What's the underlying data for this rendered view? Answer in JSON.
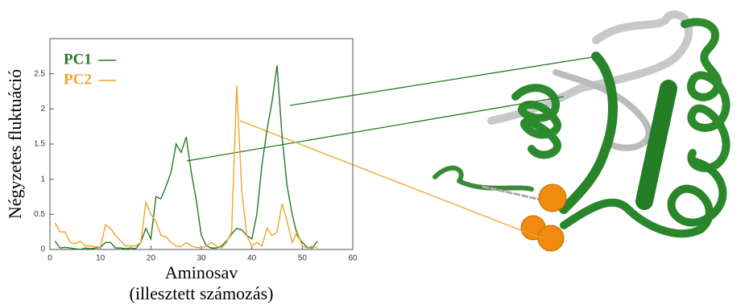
{
  "chart_data": {
    "type": "line",
    "y_label": "Négyzetes fluktuáció",
    "x_label": "Aminosav",
    "x_label_sub": "(illesztett számozás)",
    "x": [
      1,
      2,
      3,
      4,
      5,
      6,
      7,
      8,
      9,
      10,
      11,
      12,
      13,
      14,
      15,
      16,
      17,
      18,
      19,
      20,
      21,
      22,
      23,
      24,
      25,
      26,
      27,
      28,
      29,
      30,
      31,
      32,
      33,
      34,
      35,
      36,
      37,
      38,
      39,
      40,
      41,
      42,
      43,
      44,
      45,
      46,
      47,
      48,
      49,
      50,
      51,
      52,
      53
    ],
    "series": [
      {
        "name": "PC1",
        "color": "#237a23",
        "values": [
          0.12,
          0.02,
          0.03,
          0.02,
          0.01,
          0.0,
          0.02,
          0.01,
          0.02,
          0.03,
          0.1,
          0.1,
          0.02,
          0.02,
          0.01,
          0.02,
          0.01,
          0.1,
          0.3,
          0.15,
          0.75,
          0.72,
          0.9,
          1.1,
          1.5,
          1.38,
          1.6,
          1.1,
          0.7,
          0.2,
          0.05,
          0.02,
          0.02,
          0.05,
          0.12,
          0.22,
          0.3,
          0.28,
          0.2,
          0.15,
          0.5,
          1.2,
          1.7,
          2.1,
          2.62,
          1.6,
          0.9,
          0.5,
          0.2,
          0.1,
          0.03,
          0.02,
          0.12
        ]
      },
      {
        "name": "PC2",
        "color": "#f0a525",
        "values": [
          0.38,
          0.25,
          0.25,
          0.1,
          0.08,
          0.12,
          0.05,
          0.05,
          0.04,
          0.03,
          0.35,
          0.3,
          0.2,
          0.12,
          0.05,
          0.05,
          0.05,
          0.1,
          0.67,
          0.5,
          0.4,
          0.2,
          0.18,
          0.1,
          0.05,
          0.04,
          0.1,
          0.05,
          0.03,
          0.02,
          0.05,
          0.1,
          0.05,
          0.02,
          0.1,
          0.25,
          2.33,
          0.85,
          0.2,
          0.05,
          0.1,
          0.05,
          0.3,
          0.2,
          0.25,
          0.65,
          0.4,
          0.1,
          0.25,
          0.05,
          0.02,
          0.05,
          0.02
        ]
      }
    ],
    "xlim": [
      0,
      60
    ],
    "xticks": [
      0,
      10,
      20,
      30,
      40,
      50,
      60
    ],
    "ylim": [
      0,
      3
    ],
    "yticks": [
      0,
      0.5,
      1,
      1.5,
      2,
      2.5
    ],
    "grid": false,
    "legend": "top-left"
  }
}
